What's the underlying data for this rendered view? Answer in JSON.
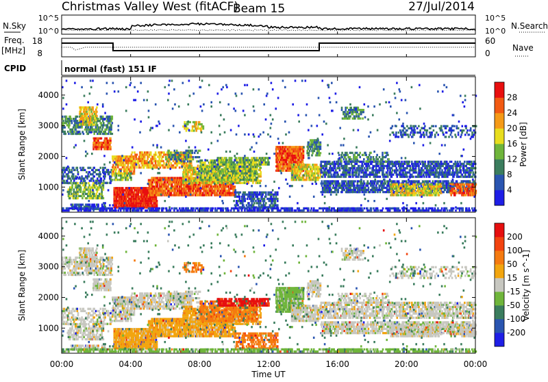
{
  "header": {
    "station": "Christmas Valley West (fitACF)",
    "beam": "Beam 15",
    "date": "27/Jul/2014"
  },
  "nsky_panel": {
    "left_label": "N.Sky",
    "left_ticks": [
      "10^5",
      "10^0"
    ],
    "right_label": "N.Search",
    "right_ticks": [
      "10^5",
      "10^0"
    ]
  },
  "freq_panel": {
    "left_label_1": "Freq.",
    "left_label_2": "[MHz]",
    "left_ticks": [
      "18",
      "8"
    ],
    "right_label": "Nave",
    "right_ticks": [
      "60",
      "0"
    ]
  },
  "cpid_panel": {
    "label": "CPID",
    "mode": "normal (fast) 151 IF"
  },
  "chart_data": [
    {
      "type": "heatmap",
      "ylabel": "Slant Range [km]",
      "ylim": [
        180,
        4600
      ],
      "yticks": [
        "1000",
        "2000",
        "3000",
        "4000"
      ],
      "x_range_hours": [
        0,
        24
      ],
      "colorbar": {
        "label": "Power [dB]",
        "ticks": [
          "4",
          "8",
          "12",
          "16",
          "20",
          "24",
          "28"
        ],
        "range": [
          0,
          30
        ],
        "colors": [
          "#1e1ee6",
          "#2a55b0",
          "#3b7d5e",
          "#6fb53b",
          "#e8dd1e",
          "#f59a17",
          "#f25a12",
          "#e80f0f"
        ]
      }
    },
    {
      "type": "heatmap",
      "ylabel": "Slant Range [km]",
      "ylim": [
        180,
        4600
      ],
      "yticks": [
        "1000",
        "2000",
        "3000",
        "4000"
      ],
      "x_range_hours": [
        0,
        24
      ],
      "colorbar": {
        "label": "Velocity [m s^-1]",
        "ticks": [
          "200",
          "100",
          "50",
          "15",
          "-15",
          "-50",
          "-100",
          "-200"
        ],
        "colors": [
          "#1e1ee6",
          "#2a55b0",
          "#3b7d5e",
          "#6fb53b",
          "#c7c7c0",
          "#f2a50f",
          "#f57a10",
          "#f2430f",
          "#e60f0f"
        ]
      }
    }
  ],
  "xaxis": {
    "label": "Time UT",
    "ticks": [
      "00:00",
      "04:00",
      "08:00",
      "12:00",
      "16:00",
      "20:00",
      "00:00"
    ]
  }
}
